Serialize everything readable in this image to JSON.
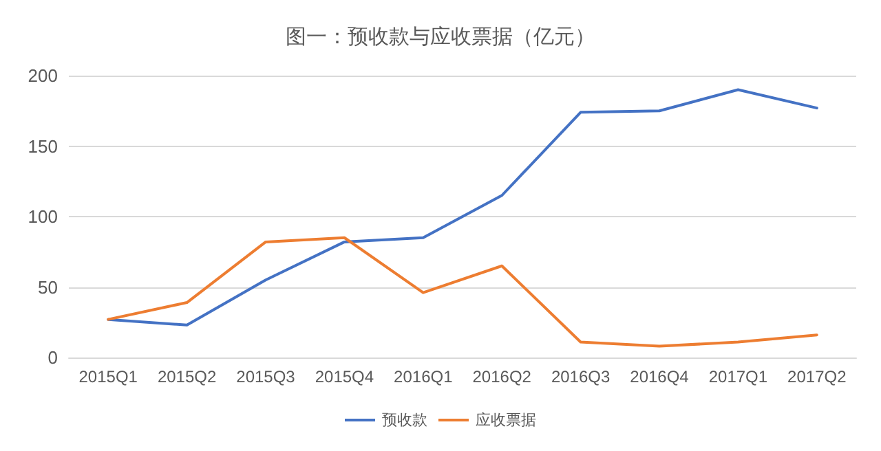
{
  "chart_data": {
    "type": "line",
    "title": "图一：预收款与应收票据（亿元）",
    "categories": [
      "2015Q1",
      "2015Q2",
      "2015Q3",
      "2015Q4",
      "2016Q1",
      "2016Q2",
      "2016Q3",
      "2016Q4",
      "2017Q1",
      "2017Q2"
    ],
    "series": [
      {
        "name": "预收款",
        "color": "#4472c4",
        "values": [
          27,
          23,
          55,
          82,
          85,
          115,
          174,
          175,
          190,
          177
        ]
      },
      {
        "name": "应收票据",
        "color": "#ed7d31",
        "values": [
          27,
          39,
          82,
          85,
          46,
          65,
          11,
          8,
          11,
          16
        ]
      }
    ],
    "ylim": [
      0,
      200
    ],
    "yticks": [
      0,
      50,
      100,
      150,
      200
    ],
    "grid": "y",
    "legend": "bottom",
    "marker": "none",
    "line_style": "solid"
  }
}
